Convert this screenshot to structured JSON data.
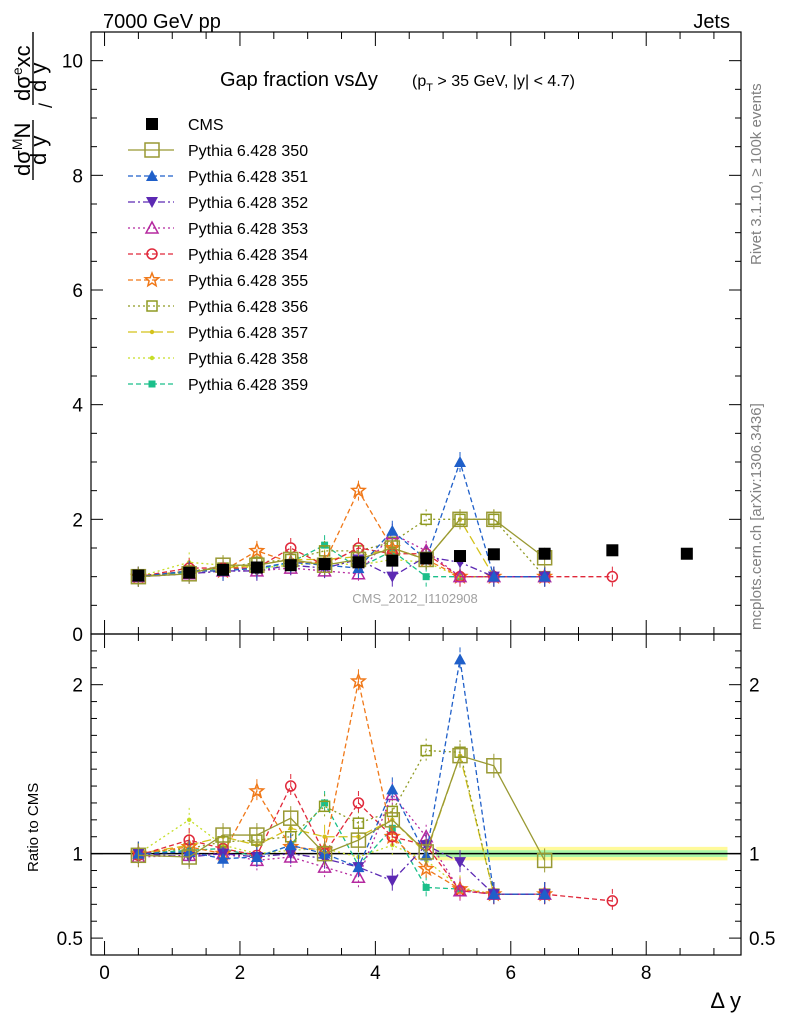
{
  "header": {
    "left": "7000 GeV pp",
    "right": "Jets"
  },
  "side_labels": {
    "top": "Rivet 3.1.10, ≥ 100k events",
    "bottom": "mcplots.cern.ch [arXiv:1306.3436]"
  },
  "watermark": "CMS_2012_I1102908",
  "chart_data": [
    {
      "type": "line",
      "title": "Gap fraction vsΔy",
      "title_sub": "(p_T > 35 GeV, |y| < 4.7)",
      "ylabel": "dσ^M N / dσ^excl",
      "xlabel": "Δ y",
      "xlim": [
        -0.2,
        9.4
      ],
      "ylim": [
        0,
        10.5
      ],
      "xticks": [
        0,
        2,
        4,
        6,
        8
      ],
      "yticks": [
        0,
        2,
        4,
        6,
        8,
        10
      ],
      "legend_position": "top-left",
      "x": [
        0.5,
        1.25,
        1.75,
        2.25,
        2.75,
        3.25,
        3.75,
        4.25,
        4.75,
        5.25,
        5.75,
        6.5,
        7.5,
        8.6
      ],
      "series": [
        {
          "name": "CMS",
          "color": "#000000",
          "marker": "square-filled",
          "dash": "none",
          "x": [
            0.5,
            1.25,
            1.75,
            2.25,
            2.75,
            3.25,
            3.75,
            4.25,
            4.75,
            5.25,
            5.75,
            6.5,
            7.5,
            8.6
          ],
          "values": [
            1.02,
            1.07,
            1.12,
            1.16,
            1.2,
            1.22,
            1.25,
            1.28,
            1.32,
            1.36,
            1.39,
            1.4,
            1.46,
            1.4
          ]
        },
        {
          "name": "Pythia 6.428 350",
          "color": "#999933",
          "marker": "square-open",
          "dash": "solid",
          "x": [
            0.5,
            1.25,
            1.75,
            2.25,
            2.75,
            3.25,
            3.75,
            4.25,
            4.75,
            5.25,
            5.75,
            6.5
          ],
          "values": [
            1.0,
            1.05,
            1.2,
            1.2,
            1.3,
            1.2,
            1.3,
            1.5,
            1.3,
            2.0,
            2.0,
            1.33
          ]
        },
        {
          "name": "Pythia 6.428 351",
          "color": "#1f5fc9",
          "marker": "triangle-up-filled",
          "dash": "dashed",
          "x": [
            0.5,
            1.25,
            1.75,
            2.25,
            2.75,
            3.25,
            3.75,
            4.25,
            4.75,
            5.25,
            5.75,
            6.5
          ],
          "values": [
            1.0,
            1.1,
            1.1,
            1.15,
            1.25,
            1.2,
            1.15,
            1.8,
            1.3,
            3.0,
            1.0,
            1.0
          ]
        },
        {
          "name": "Pythia 6.428 352",
          "color": "#5c29b3",
          "marker": "triangle-down-filled",
          "dash": "dashdot",
          "x": [
            0.5,
            1.25,
            1.75,
            2.25,
            2.75,
            3.25,
            3.75,
            4.25,
            4.75,
            5.25,
            5.75,
            6.5
          ],
          "values": [
            1.0,
            1.05,
            1.1,
            1.1,
            1.2,
            1.15,
            1.3,
            1.0,
            1.35,
            1.25,
            1.0,
            1.0
          ]
        },
        {
          "name": "Pythia 6.428 353",
          "color": "#b5299f",
          "marker": "triangle-up-open",
          "dash": "dotted",
          "x": [
            0.5,
            1.25,
            1.75,
            2.25,
            2.75,
            3.25,
            3.75,
            4.25,
            4.75,
            5.25,
            5.75,
            6.5
          ],
          "values": [
            1.0,
            1.05,
            1.1,
            1.1,
            1.15,
            1.1,
            1.05,
            1.75,
            1.45,
            1.0,
            1.0,
            1.0
          ]
        },
        {
          "name": "Pythia 6.428 354",
          "color": "#e0283a",
          "marker": "circle-open",
          "dash": "dashed",
          "x": [
            0.5,
            1.25,
            1.75,
            2.25,
            2.75,
            3.25,
            3.75,
            4.25,
            4.75,
            5.25,
            5.75,
            6.5,
            7.5
          ],
          "values": [
            1.0,
            1.15,
            1.15,
            1.15,
            1.5,
            1.2,
            1.5,
            1.4,
            1.4,
            1.0,
            1.0,
            1.0,
            1.0
          ]
        },
        {
          "name": "Pythia 6.428 355",
          "color": "#f07818",
          "marker": "star-open",
          "dash": "dashed",
          "x": [
            0.5,
            1.25,
            1.75,
            2.25,
            2.75,
            3.25,
            3.75,
            4.25,
            4.75,
            5.25,
            5.75,
            6.5
          ],
          "values": [
            1.0,
            1.1,
            1.1,
            1.45,
            1.25,
            1.25,
            2.5,
            1.5,
            1.3,
            1.0,
            1.0,
            1.0
          ]
        },
        {
          "name": "Pythia 6.428 356",
          "color": "#8f9a22",
          "marker": "square-open-small",
          "dash": "dotted",
          "x": [
            0.5,
            1.25,
            1.75,
            2.25,
            2.75,
            3.25,
            3.75,
            4.25,
            4.75,
            5.25,
            5.75,
            6.5
          ],
          "values": [
            1.0,
            1.1,
            1.15,
            1.25,
            1.3,
            1.45,
            1.45,
            1.6,
            2.0,
            2.0,
            2.0,
            1.0
          ]
        },
        {
          "name": "Pythia 6.428 357",
          "color": "#d4c21a",
          "marker": "dot",
          "dash": "longdash",
          "x": [
            0.5,
            1.25,
            1.75,
            2.25,
            2.75,
            3.25,
            3.75,
            4.25,
            4.75,
            5.25,
            5.75,
            6.5
          ],
          "values": [
            1.0,
            1.1,
            1.15,
            1.2,
            1.3,
            1.3,
            1.35,
            1.5,
            1.3,
            2.0,
            1.0,
            1.0
          ]
        },
        {
          "name": "Pythia 6.428 358",
          "color": "#c6de28",
          "marker": "dot",
          "dash": "dotted",
          "x": [
            0.5,
            1.25,
            1.75,
            2.25,
            2.75,
            3.25,
            3.75,
            4.25,
            4.75,
            5.25,
            5.75,
            6.5
          ],
          "values": [
            1.0,
            1.25,
            1.2,
            1.15,
            1.2,
            1.25,
            1.2,
            1.3,
            1.25,
            1.0,
            1.0,
            1.0
          ]
        },
        {
          "name": "Pythia 6.428 359",
          "color": "#1bbf8a",
          "marker": "square-filled-small",
          "dash": "dashed",
          "x": [
            0.5,
            1.25,
            1.75,
            2.25,
            2.75,
            3.25,
            3.75,
            4.25,
            4.75,
            5.25,
            5.75,
            6.5
          ],
          "values": [
            1.0,
            1.08,
            1.15,
            1.12,
            1.25,
            1.55,
            1.15,
            1.45,
            1.0,
            1.0,
            1.0,
            1.0
          ]
        }
      ]
    },
    {
      "type": "line",
      "ylabel": "Ratio to CMS",
      "xlim": [
        -0.2,
        9.4
      ],
      "ylim": [
        0.4,
        2.3
      ],
      "yticks": [
        0.5,
        1,
        2
      ],
      "yticklabels": [
        "0.5",
        "1",
        "2"
      ],
      "ref_line": 1,
      "band": {
        "x0": 4.9,
        "x1": 9.2,
        "outer": 0.04,
        "inner": 0.02
      },
      "series": [
        {
          "name": "Pythia 6.428 350",
          "x": [
            0.5,
            1.25,
            1.75,
            2.25,
            2.75,
            3.25,
            3.75,
            4.25,
            4.75,
            5.25,
            5.75,
            6.5
          ],
          "values": [
            0.99,
            0.98,
            1.11,
            1.11,
            1.21,
            1.0,
            1.08,
            1.2,
            1.01,
            1.58,
            1.52,
            0.96
          ]
        },
        {
          "name": "Pythia 6.428 351",
          "x": [
            0.5,
            1.25,
            1.75,
            2.25,
            2.75,
            3.25,
            3.75,
            4.25,
            4.75,
            5.25,
            5.75,
            6.5
          ],
          "values": [
            1.0,
            1.01,
            0.97,
            0.98,
            1.05,
            1.0,
            0.92,
            1.38,
            0.99,
            2.15,
            0.76,
            0.76
          ]
        },
        {
          "name": "Pythia 6.428 352",
          "x": [
            0.5,
            1.25,
            1.75,
            2.25,
            2.75,
            3.25,
            3.75,
            4.25,
            4.75,
            5.25,
            5.75,
            6.5
          ],
          "values": [
            1.0,
            0.98,
            1.0,
            0.98,
            1.0,
            0.97,
            0.92,
            0.84,
            1.05,
            0.95,
            0.76,
            0.76
          ]
        },
        {
          "name": "Pythia 6.428 353",
          "x": [
            0.5,
            1.25,
            1.75,
            2.25,
            2.75,
            3.25,
            3.75,
            4.25,
            4.75,
            5.25,
            5.75,
            6.5
          ],
          "values": [
            0.98,
            0.99,
            1.0,
            0.96,
            0.98,
            0.92,
            0.86,
            1.35,
            1.1,
            0.78,
            0.76,
            0.76
          ]
        },
        {
          "name": "Pythia 6.428 354",
          "x": [
            0.5,
            1.25,
            1.75,
            2.25,
            2.75,
            3.25,
            3.75,
            4.25,
            4.75,
            5.25,
            5.75,
            6.5,
            7.5
          ],
          "values": [
            0.99,
            1.08,
            1.03,
            0.99,
            1.4,
            1.0,
            1.3,
            1.1,
            1.05,
            0.78,
            0.76,
            0.76,
            0.72
          ]
        },
        {
          "name": "Pythia 6.428 355",
          "x": [
            0.5,
            1.25,
            1.75,
            2.25,
            2.75,
            3.25,
            3.75,
            4.25,
            4.75,
            5.25,
            5.75,
            6.5
          ],
          "values": [
            1.0,
            1.04,
            1.0,
            1.37,
            1.04,
            1.02,
            2.02,
            1.1,
            0.91,
            0.79,
            0.76,
            0.76
          ]
        },
        {
          "name": "Pythia 6.428 356",
          "x": [
            0.5,
            1.25,
            1.75,
            2.25,
            2.75,
            3.25,
            3.75,
            4.25,
            4.75,
            5.25,
            5.75,
            6.5
          ],
          "values": [
            1.0,
            1.03,
            1.07,
            1.08,
            1.1,
            1.28,
            1.18,
            1.25,
            1.61,
            1.6,
            0.76,
            0.76
          ]
        },
        {
          "name": "Pythia 6.428 357",
          "x": [
            0.5,
            1.25,
            1.75,
            2.25,
            2.75,
            3.25,
            3.75,
            4.25,
            4.75,
            5.25,
            5.75,
            6.5
          ],
          "values": [
            1.0,
            1.05,
            1.1,
            1.05,
            1.15,
            1.1,
            1.1,
            1.2,
            1.0,
            1.58,
            0.76,
            0.76
          ]
        },
        {
          "name": "Pythia 6.428 358",
          "x": [
            0.5,
            1.25,
            1.75,
            2.25,
            2.75,
            3.25,
            3.75,
            4.25,
            4.75,
            5.25,
            5.75,
            6.5
          ],
          "values": [
            1.0,
            1.2,
            1.05,
            1.0,
            1.02,
            1.03,
            0.98,
            1.05,
            0.96,
            0.8,
            0.76,
            0.76
          ]
        },
        {
          "name": "Pythia 6.428 359",
          "x": [
            0.5,
            1.25,
            1.75,
            2.25,
            2.75,
            3.25,
            3.75,
            4.25,
            4.75,
            5.25,
            5.75,
            6.5
          ],
          "values": [
            1.0,
            1.02,
            1.03,
            0.98,
            1.05,
            1.3,
            0.93,
            1.15,
            0.8,
            0.79,
            0.76,
            0.76
          ]
        }
      ]
    }
  ]
}
